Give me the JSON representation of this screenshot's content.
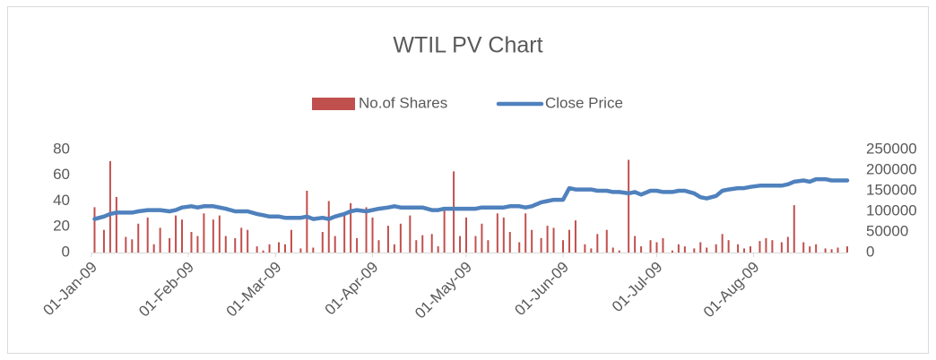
{
  "chart_data": {
    "type": "combo",
    "title": "WTIL PV Chart",
    "legend": "top",
    "grid": false,
    "x": [
      "02-Jan-09",
      "05-Jan-09",
      "07-Jan-09",
      "09-Jan-09",
      "12-Jan-09",
      "14-Jan-09",
      "16-Jan-09",
      "19-Jan-09",
      "21-Jan-09",
      "23-Jan-09",
      "26-Jan-09",
      "28-Jan-09",
      "30-Jan-09",
      "02-Feb-09",
      "04-Feb-09",
      "06-Feb-09",
      "09-Feb-09",
      "11-Feb-09",
      "13-Feb-09",
      "16-Feb-09",
      "18-Feb-09",
      "20-Feb-09",
      "23-Feb-09",
      "25-Feb-09",
      "27-Feb-09",
      "02-Mar-09",
      "04-Mar-09",
      "06-Mar-09",
      "09-Mar-09",
      "11-Mar-09",
      "13-Mar-09",
      "16-Mar-09",
      "18-Mar-09",
      "20-Mar-09",
      "23-Mar-09",
      "25-Mar-09",
      "27-Mar-09",
      "30-Mar-09",
      "01-Apr-09",
      "03-Apr-09",
      "06-Apr-09",
      "08-Apr-09",
      "10-Apr-09",
      "13-Apr-09",
      "15-Apr-09",
      "17-Apr-09",
      "20-Apr-09",
      "22-Apr-09",
      "24-Apr-09",
      "27-Apr-09",
      "29-Apr-09",
      "01-May-09",
      "04-May-09",
      "06-May-09",
      "08-May-09",
      "11-May-09",
      "13-May-09",
      "15-May-09",
      "18-May-09",
      "20-May-09",
      "22-May-09",
      "25-May-09",
      "27-May-09",
      "29-May-09",
      "01-Jun-09",
      "03-Jun-09",
      "05-Jun-09",
      "08-Jun-09",
      "10-Jun-09",
      "12-Jun-09",
      "15-Jun-09",
      "17-Jun-09",
      "19-Jun-09",
      "22-Jun-09",
      "24-Jun-09",
      "26-Jun-09",
      "29-Jun-09",
      "01-Jul-09",
      "03-Jul-09",
      "06-Jul-09",
      "08-Jul-09",
      "10-Jul-09",
      "13-Jul-09",
      "15-Jul-09",
      "17-Jul-09",
      "20-Jul-09",
      "22-Jul-09",
      "24-Jul-09",
      "27-Jul-09",
      "29-Jul-09",
      "31-Jul-09",
      "03-Aug-09",
      "05-Aug-09",
      "07-Aug-09",
      "10-Aug-09",
      "12-Aug-09",
      "14-Aug-09",
      "17-Aug-09",
      "19-Aug-09",
      "21-Aug-09",
      "24-Aug-09",
      "26-Aug-09",
      "28-Aug-09",
      "31-Aug-09"
    ],
    "xlim": [
      "01-Jan-09",
      "31-Aug-09"
    ],
    "xticks": [
      "01-Jan-09",
      "01-Feb-09",
      "01-Mar-09",
      "01-Apr-09",
      "01-May-09",
      "01-Jun-09",
      "01-Jul-09",
      "01-Aug-09"
    ],
    "ylim": [
      0,
      80
    ],
    "yticks": [
      0,
      20,
      40,
      60,
      80
    ],
    "y2lim": [
      0,
      250000
    ],
    "y2ticks": [
      0,
      50000,
      100000,
      150000,
      200000,
      250000
    ],
    "series": [
      {
        "name": "No.of Shares",
        "kind": "bar",
        "axis": "y2",
        "color": "#c0504d",
        "values": [
          110000,
          55000,
          222000,
          135000,
          38000,
          32000,
          70000,
          85000,
          20000,
          60000,
          35000,
          90000,
          80000,
          50000,
          40000,
          95000,
          80000,
          90000,
          40000,
          35000,
          60000,
          55000,
          15000,
          5000,
          20000,
          25000,
          20000,
          55000,
          10000,
          150000,
          12000,
          50000,
          125000,
          40000,
          90000,
          120000,
          35000,
          110000,
          85000,
          30000,
          65000,
          20000,
          70000,
          90000,
          30000,
          42000,
          45000,
          15000,
          110000,
          197000,
          40000,
          85000,
          40000,
          70000,
          30000,
          95000,
          85000,
          50000,
          25000,
          95000,
          55000,
          35000,
          65000,
          60000,
          30000,
          55000,
          78000,
          20000,
          10000,
          45000,
          55000,
          12000,
          5000,
          225000,
          40000,
          15000,
          30000,
          25000,
          35000,
          5000,
          20000,
          15000,
          10000,
          25000,
          12000,
          20000,
          45000,
          30000,
          20000,
          10000,
          15000,
          28000,
          35000,
          30000,
          25000,
          38000,
          115000,
          25000,
          15000,
          20000,
          10000,
          8000,
          12000,
          15000
        ]
      },
      {
        "name": "Close Price",
        "kind": "line",
        "axis": "y",
        "color": "#4f81bd",
        "values": [
          26,
          28,
          30,
          31,
          31,
          31,
          32,
          33,
          33,
          33,
          32,
          33,
          35,
          36,
          35,
          36,
          36,
          35,
          34,
          32,
          32,
          32,
          30,
          29,
          28,
          28,
          27,
          27,
          27,
          28,
          26,
          27,
          26,
          28,
          30,
          32,
          33,
          32,
          33,
          34,
          35,
          36,
          35,
          35,
          35,
          35,
          33,
          33,
          34,
          34,
          34,
          34,
          34,
          35,
          35,
          35,
          35,
          36,
          36,
          35,
          36,
          39,
          40,
          41,
          41,
          50,
          49,
          49,
          49,
          48,
          48,
          47,
          47,
          46,
          47,
          45,
          48,
          48,
          47,
          47,
          48,
          48,
          46,
          43,
          42,
          44,
          48,
          49,
          50,
          50,
          51,
          52,
          52,
          52,
          52,
          53,
          55,
          56,
          55,
          57,
          57,
          56,
          56,
          56
        ]
      }
    ]
  }
}
